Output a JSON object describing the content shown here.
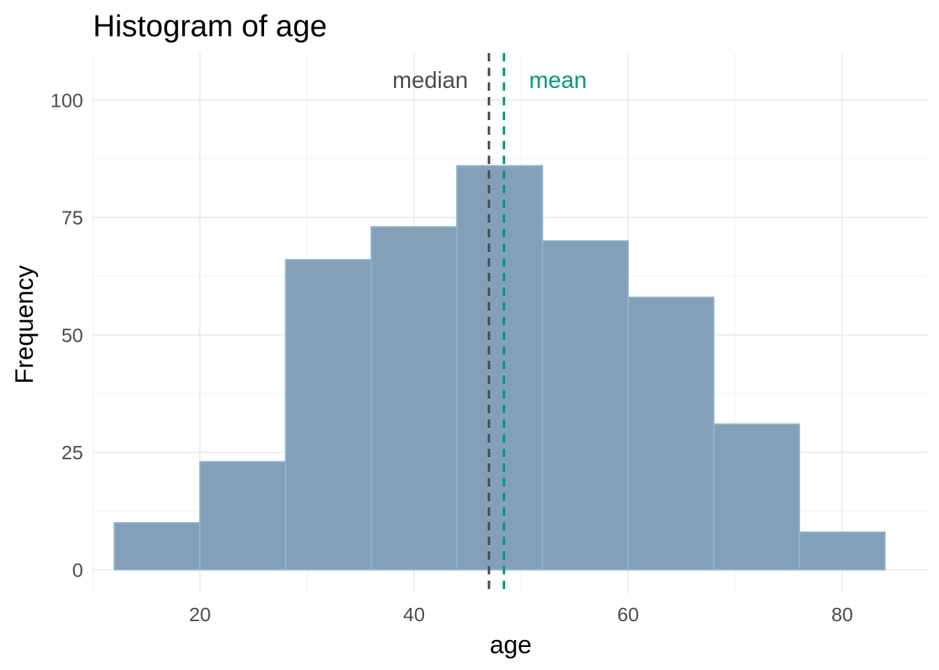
{
  "chart_data": {
    "type": "bar",
    "title": "Histogram of age",
    "xlabel": "age",
    "ylabel": "Frequency",
    "xlim": [
      10,
      88
    ],
    "ylim": [
      -5,
      110
    ],
    "x_ticks": [
      20,
      40,
      60,
      80
    ],
    "y_ticks": [
      0,
      25,
      50,
      75,
      100
    ],
    "x_minor_ticks": [
      10,
      30,
      50,
      70,
      90
    ],
    "y_minor_ticks": [
      12.5,
      37.5,
      62.5,
      87.5
    ],
    "grid": true,
    "bins": [
      {
        "x0": 12,
        "x1": 20,
        "count": 10
      },
      {
        "x0": 20,
        "x1": 28,
        "count": 23
      },
      {
        "x0": 28,
        "x1": 36,
        "count": 66
      },
      {
        "x0": 36,
        "x1": 44,
        "count": 73
      },
      {
        "x0": 44,
        "x1": 52,
        "count": 86
      },
      {
        "x0": 52,
        "x1": 60,
        "count": 70
      },
      {
        "x0": 60,
        "x1": 68,
        "count": 58
      },
      {
        "x0": 68,
        "x1": 76,
        "count": 31
      },
      {
        "x0": 76,
        "x1": 84,
        "count": 8
      }
    ],
    "bar_fill": "#7d9bb5",
    "bar_stroke": "#8fb4d6",
    "reference_lines": [
      {
        "label": "median",
        "value": 47,
        "color": "#4d4d4d",
        "label_side": "left"
      },
      {
        "label": "mean",
        "value": 48.4,
        "color": "#009b77",
        "label_side": "right"
      }
    ]
  }
}
